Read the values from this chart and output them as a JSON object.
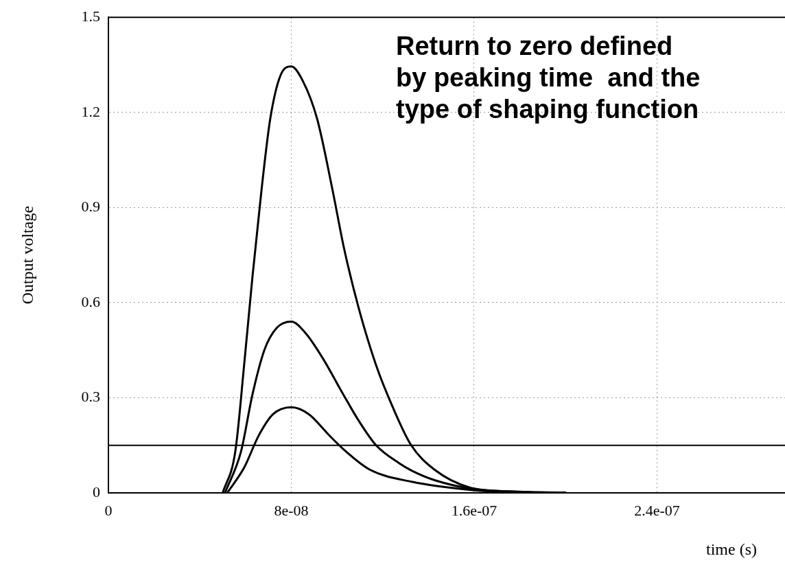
{
  "chart_data": {
    "type": "line",
    "xlabel": "time (s)",
    "ylabel": "Output voltage",
    "annotations": [
      "Return to zero defined\nby peaking time  and the\ntype of shaping function"
    ],
    "xlim": [
      0,
      2.96e-07
    ],
    "ylim": [
      0,
      1.5
    ],
    "xticks": [
      0,
      {
        "value": 8e-08,
        "label": "8e-08"
      },
      {
        "value": 1.6e-07,
        "label": "1.6e-07"
      },
      {
        "value": 2.4e-07,
        "label": "2.4e-07"
      }
    ],
    "yticks": [
      0,
      0.3,
      0.6,
      0.9,
      1.2,
      1.5
    ],
    "grid": true,
    "legend": false,
    "marker": "none",
    "line_style": "solid",
    "ref_lines": [
      {
        "axis": "y",
        "value": 0.15,
        "color": "#000000"
      }
    ],
    "series": [
      {
        "color": "#000000",
        "x": [
          5e-08,
          5.55e-08,
          5.94e-08,
          6.3e-08,
          6.7e-08,
          7.08e-08,
          7.53e-08,
          8e-08,
          8.5e-08,
          9.13e-08,
          9.8e-08,
          1.03e-07,
          1.093e-07,
          1.17e-07,
          1.246e-07,
          1.324e-07,
          1.427e-07,
          1.58e-07,
          1.75e-07,
          2e-07
        ],
        "values": [
          0,
          0.13,
          0.405,
          0.68,
          0.957,
          1.18,
          1.317,
          1.345,
          1.3,
          1.18,
          0.957,
          0.774,
          0.588,
          0.405,
          0.267,
          0.151,
          0.073,
          0.017,
          0.005,
          0.001
        ]
      },
      {
        "color": "#000000",
        "x": [
          5.1e-08,
          5.8e-08,
          6.3e-08,
          6.82e-08,
          7.36e-08,
          8e-08,
          8.6e-08,
          9.4e-08,
          1.02e-07,
          1.093e-07,
          1.17e-07,
          1.273e-07,
          1.327e-07,
          1.427e-07,
          1.6e-07,
          1.85e-07
        ],
        "values": [
          0,
          0.13,
          0.31,
          0.45,
          0.52,
          0.54,
          0.506,
          0.422,
          0.32,
          0.23,
          0.151,
          0.093,
          0.07,
          0.04,
          0.012,
          0.002
        ]
      },
      {
        "color": "#000000",
        "x": [
          5.2e-08,
          5.94e-08,
          6.57e-08,
          7.2e-08,
          8e-08,
          8.77e-08,
          9.64e-08,
          1.04e-07,
          1.144e-07,
          1.327e-07,
          1.6e-07,
          1.75e-07
        ],
        "values": [
          0,
          0.08,
          0.18,
          0.248,
          0.27,
          0.248,
          0.183,
          0.13,
          0.073,
          0.035,
          0.008,
          0.002
        ]
      }
    ]
  }
}
